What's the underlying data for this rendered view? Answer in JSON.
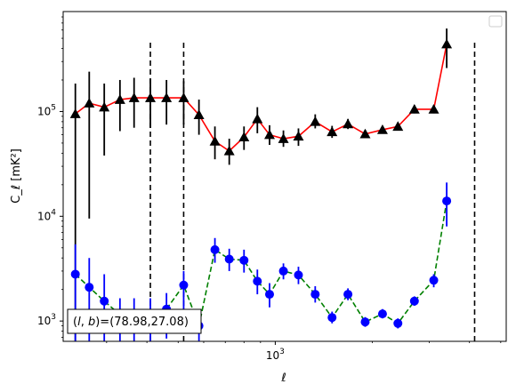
{
  "chart_data": {
    "type": "scatter",
    "title": "",
    "xlabel": "ℓ",
    "ylabel": "C_ℓ  [mK²]",
    "xscale": "log",
    "yscale": "log",
    "xlim": [
      220,
      5200
    ],
    "ylim": [
      640,
      900000
    ],
    "xticklabels": [
      {
        "value": 1000,
        "base": "10",
        "exp": "3"
      }
    ],
    "yticklabels": [
      {
        "value": 1000,
        "base": "10",
        "exp": "3"
      },
      {
        "value": 10000,
        "base": "10",
        "exp": "4"
      },
      {
        "value": 100000,
        "base": "10",
        "exp": "5"
      }
    ],
    "grid": false,
    "legend": {
      "placement": "top-right",
      "entries": []
    },
    "annotation": {
      "text": "(l, b)=(78.98,27.08)",
      "placement": "bottom-left"
    },
    "vlines": [
      410,
      520,
      4150
    ],
    "series": [
      {
        "color": "#000000",
        "line_color": "#ff0000",
        "line_style": "solid",
        "marker": "triangle",
        "points": [
          {
            "x": 240,
            "y": 95000,
            "ylo": 640,
            "yhi": 185000
          },
          {
            "x": 265,
            "y": 120000,
            "ylo": 9500,
            "yhi": 240000
          },
          {
            "x": 295,
            "y": 110000,
            "ylo": 38000,
            "yhi": 185000
          },
          {
            "x": 330,
            "y": 130000,
            "ylo": 65000,
            "yhi": 200000
          },
          {
            "x": 365,
            "y": 135000,
            "ylo": 70000,
            "yhi": 210000
          },
          {
            "x": 410,
            "y": 135000,
            "ylo": 70000,
            "yhi": 205000
          },
          {
            "x": 460,
            "y": 135000,
            "ylo": 75000,
            "yhi": 200000
          },
          {
            "x": 520,
            "y": 135000,
            "ylo": 75000,
            "yhi": 195000
          },
          {
            "x": 580,
            "y": 93000,
            "ylo": 60000,
            "yhi": 130000
          },
          {
            "x": 650,
            "y": 52000,
            "ylo": 35000,
            "yhi": 72000
          },
          {
            "x": 720,
            "y": 42000,
            "ylo": 31000,
            "yhi": 55000
          },
          {
            "x": 800,
            "y": 57000,
            "ylo": 43000,
            "yhi": 72000
          },
          {
            "x": 880,
            "y": 85000,
            "ylo": 62000,
            "yhi": 110000
          },
          {
            "x": 960,
            "y": 60000,
            "ylo": 48000,
            "yhi": 74000
          },
          {
            "x": 1060,
            "y": 55000,
            "ylo": 46000,
            "yhi": 66000
          },
          {
            "x": 1180,
            "y": 58000,
            "ylo": 47000,
            "yhi": 69000
          },
          {
            "x": 1330,
            "y": 80000,
            "ylo": 69000,
            "yhi": 94000
          },
          {
            "x": 1500,
            "y": 64000,
            "ylo": 56000,
            "yhi": 73000
          },
          {
            "x": 1680,
            "y": 76000,
            "ylo": 68000,
            "yhi": 85000
          },
          {
            "x": 1900,
            "y": 61000,
            "ylo": 56000,
            "yhi": 67000
          },
          {
            "x": 2150,
            "y": 67000,
            "ylo": 62000,
            "yhi": 73000
          },
          {
            "x": 2400,
            "y": 72000,
            "ylo": 66000,
            "yhi": 78000
          },
          {
            "x": 2700,
            "y": 105000,
            "ylo": 96000,
            "yhi": 115000
          },
          {
            "x": 3100,
            "y": 105000,
            "ylo": 96000,
            "yhi": 115000
          },
          {
            "x": 3400,
            "y": 440000,
            "ylo": 260000,
            "yhi": 620000
          }
        ]
      },
      {
        "color": "#0000ff",
        "line_color": "#008000",
        "line_style": "dashed",
        "marker": "circle",
        "points": [
          {
            "x": 240,
            "y": 2800,
            "ylo": 640,
            "yhi": 5400
          },
          {
            "x": 265,
            "y": 2100,
            "ylo": 640,
            "yhi": 4000
          },
          {
            "x": 295,
            "y": 1550,
            "ylo": 640,
            "yhi": 2800
          },
          {
            "x": 330,
            "y": 1150,
            "ylo": 640,
            "yhi": 1650
          },
          {
            "x": 365,
            "y": 1000,
            "ylo": 640,
            "yhi": 1650
          },
          {
            "x": 410,
            "y": 1000,
            "ylo": 640,
            "yhi": 1650
          },
          {
            "x": 460,
            "y": 1300,
            "ylo": 680,
            "yhi": 1850
          },
          {
            "x": 520,
            "y": 2200,
            "ylo": 900,
            "yhi": 3000
          },
          {
            "x": 580,
            "y": 900,
            "ylo": 640,
            "yhi": 1200
          },
          {
            "x": 650,
            "y": 4800,
            "ylo": 3600,
            "yhi": 6200
          },
          {
            "x": 720,
            "y": 3900,
            "ylo": 3000,
            "yhi": 4900
          },
          {
            "x": 800,
            "y": 3800,
            "ylo": 2900,
            "yhi": 4800
          },
          {
            "x": 880,
            "y": 2400,
            "ylo": 1800,
            "yhi": 3100
          },
          {
            "x": 960,
            "y": 1800,
            "ylo": 1350,
            "yhi": 2300
          },
          {
            "x": 1060,
            "y": 3000,
            "ylo": 2500,
            "yhi": 3550
          },
          {
            "x": 1180,
            "y": 2750,
            "ylo": 2250,
            "yhi": 3300
          },
          {
            "x": 1330,
            "y": 1800,
            "ylo": 1500,
            "yhi": 2150
          },
          {
            "x": 1500,
            "y": 1080,
            "ylo": 950,
            "yhi": 1230
          },
          {
            "x": 1680,
            "y": 1800,
            "ylo": 1580,
            "yhi": 2050
          },
          {
            "x": 1900,
            "y": 980,
            "ylo": 880,
            "yhi": 1090
          },
          {
            "x": 2150,
            "y": 1170,
            "ylo": 1060,
            "yhi": 1300
          },
          {
            "x": 2400,
            "y": 950,
            "ylo": 850,
            "yhi": 1060
          },
          {
            "x": 2700,
            "y": 1550,
            "ylo": 1400,
            "yhi": 1720
          },
          {
            "x": 3100,
            "y": 2450,
            "ylo": 2100,
            "yhi": 2800
          },
          {
            "x": 3400,
            "y": 14000,
            "ylo": 8000,
            "yhi": 21000
          }
        ]
      }
    ]
  }
}
